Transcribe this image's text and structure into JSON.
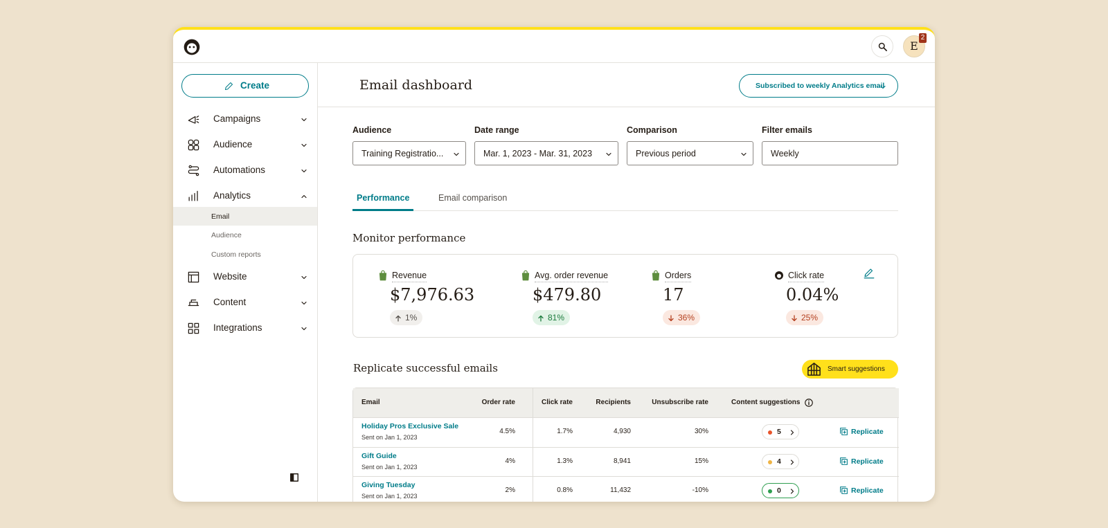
{
  "header": {
    "avatar": "E",
    "notifications": "2"
  },
  "sidebar": {
    "create": "Create",
    "nav": [
      {
        "label": "Campaigns",
        "icon": "campaigns"
      },
      {
        "label": "Audience",
        "icon": "audience"
      },
      {
        "label": "Automations",
        "icon": "automations"
      },
      {
        "label": "Analytics",
        "icon": "analytics",
        "expanded": true,
        "children": [
          "Email",
          "Audience",
          "Custom reports"
        ],
        "selected": 0
      },
      {
        "label": "Website",
        "icon": "website"
      },
      {
        "label": "Content",
        "icon": "content"
      },
      {
        "label": "Integrations",
        "icon": "integrations"
      }
    ]
  },
  "main": {
    "title": "Email dashboard",
    "subscription": "Subscribed to weekly Analytics email",
    "filters": [
      {
        "label": "Audience",
        "value": "Training Registratio...",
        "type": "select"
      },
      {
        "label": "Date range",
        "value": "Mar. 1, 2023 - Mar. 31, 2023",
        "type": "select"
      },
      {
        "label": "Comparison",
        "value": "Previous period",
        "type": "select"
      },
      {
        "label": "Filter emails",
        "value": "Weekly",
        "type": "input"
      }
    ],
    "tabs": [
      "Performance",
      "Email comparison"
    ],
    "active_tab": 0,
    "monitor": {
      "title": "Monitor performance",
      "metrics": [
        {
          "label": "Revenue",
          "value": "$7,976.63",
          "change": "1%",
          "trend": "neutral",
          "source": "shopify"
        },
        {
          "label": "Avg. order revenue",
          "value": "$479.80",
          "change": "81%",
          "trend": "up",
          "source": "shopify"
        },
        {
          "label": "Orders",
          "value": "17",
          "change": "36%",
          "trend": "down",
          "source": "shopify"
        },
        {
          "label": "Click rate",
          "value": "0.04%",
          "change": "25%",
          "trend": "down",
          "source": "mailchimp"
        }
      ]
    },
    "replicate": {
      "title": "Replicate successful emails",
      "smart": "Smart suggestions",
      "columns": [
        "Email",
        "Order rate",
        "Click rate",
        "Recipients",
        "Unsubscribe rate",
        "Content suggestions"
      ],
      "rows": [
        {
          "email": "Holiday Pros Exclusive Sale",
          "sent": "Sent on Jan 1, 2023",
          "order_rate": "4.5%",
          "click_rate": "1.7%",
          "recipients": "4,930",
          "unsubscribe_rate": "30%",
          "suggestions": 5,
          "status": "#e8542a",
          "action": "Replicate"
        },
        {
          "email": "Gift Guide",
          "sent": "Sent on Jan 1, 2023",
          "order_rate": "4%",
          "click_rate": "1.3%",
          "recipients": "8,941",
          "unsubscribe_rate": "15%",
          "suggestions": 4,
          "status": "#efb445",
          "action": "Replicate"
        },
        {
          "email": "Giving Tuesday",
          "sent": "Sent on Jan 1, 2023",
          "order_rate": "2%",
          "click_rate": "0.8%",
          "recipients": "11,432",
          "unsubscribe_rate": "-10%",
          "suggestions": 0,
          "status": "#2e9e4f",
          "action": "Replicate"
        }
      ]
    }
  }
}
